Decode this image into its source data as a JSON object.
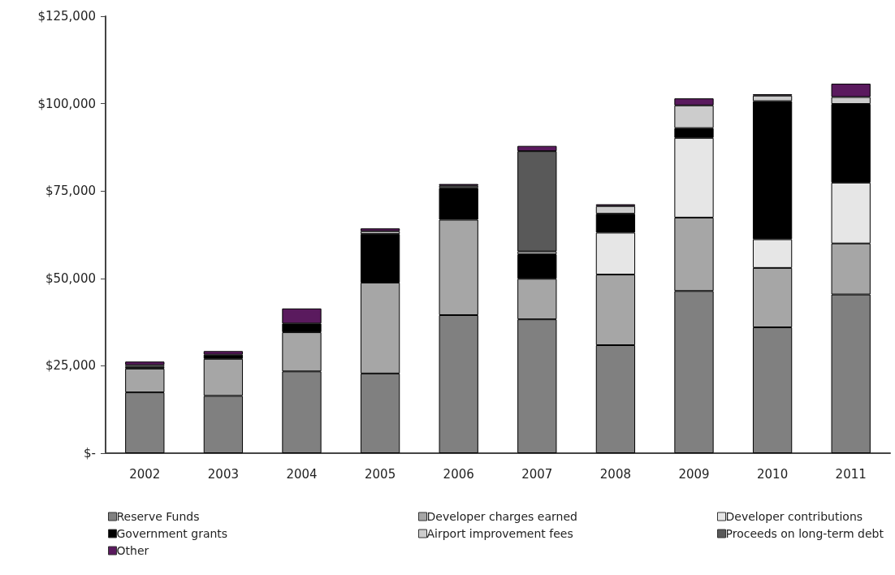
{
  "chart_data": {
    "type": "bar",
    "stacked": true,
    "categories": [
      "2002",
      "2003",
      "2004",
      "2005",
      "2006",
      "2007",
      "2008",
      "2009",
      "2010",
      "2011"
    ],
    "series": [
      {
        "name": "Reserve Funds",
        "color": "#808080",
        "values": [
          17400,
          16400,
          23400,
          22800,
          39500,
          38300,
          30900,
          46400,
          36000,
          45400
        ]
      },
      {
        "name": "Developer charges earned",
        "color": "#a6a6a6",
        "values": [
          6800,
          10600,
          11200,
          26000,
          27300,
          11600,
          20200,
          21000,
          17000,
          14600
        ]
      },
      {
        "name": "Developer contributions",
        "color": "#e6e6e6",
        "values": [
          null,
          null,
          null,
          null,
          null,
          null,
          12000,
          22800,
          8200,
          17400
        ]
      },
      {
        "name": "Government grants",
        "color": "#000000",
        "values": [
          500,
          1200,
          2500,
          13900,
          9100,
          7000,
          5400,
          2800,
          39500,
          22500
        ]
      },
      {
        "name": "Airport improvement fees",
        "color": "#cccccc",
        "values": [
          500,
          null,
          null,
          800,
          600,
          800,
          2200,
          6500,
          1600,
          2000
        ]
      },
      {
        "name": "Proceeds on long-term debt",
        "color": "#595959",
        "values": [
          null,
          null,
          null,
          null,
          null,
          28700,
          null,
          null,
          null,
          null
        ]
      },
      {
        "name": "Other",
        "color": "#5a1a5e",
        "values": [
          1000,
          1000,
          4300,
          800,
          500,
          1500,
          500,
          2000,
          400,
          3800
        ]
      }
    ],
    "ylim": [
      0,
      125000
    ],
    "yticks": [
      {
        "value": 0,
        "label": "$-"
      },
      {
        "value": 25000,
        "label": "$25,000"
      },
      {
        "value": 50000,
        "label": "$50,000"
      },
      {
        "value": 75000,
        "label": "$75,000"
      },
      {
        "value": 100000,
        "label": "$100,000"
      },
      {
        "value": 125000,
        "label": "$125,000"
      }
    ],
    "grid": false,
    "legend": "bottom"
  }
}
